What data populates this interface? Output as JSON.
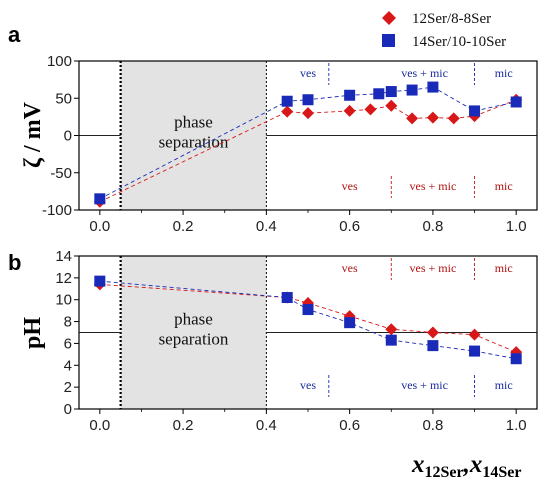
{
  "legend": [
    {
      "name": "12Ser/8-8Ser",
      "color": "#d81818",
      "marker": "diamond"
    },
    {
      "name": "14Ser/10-10Ser",
      "color": "#1a2ab8",
      "marker": "square"
    }
  ],
  "x_axis_label": {
    "main": "x",
    "sub1": "12Ser",
    "sep": ",",
    "main2": "x",
    "sub2": "14Ser"
  },
  "chart_data": [
    {
      "panel": "a",
      "type": "scatter",
      "ylabel": "ζ / mV",
      "xlim": [
        -0.05,
        1.05
      ],
      "ylim": [
        -100,
        100
      ],
      "x_ticks": [
        "0.0",
        "0.2",
        "0.4",
        "0.6",
        "0.8",
        "1.0"
      ],
      "y_ticks": [
        "100",
        "50",
        "0",
        "-50",
        "-100"
      ],
      "shaded_region": {
        "x": [
          0.05,
          0.4
        ],
        "label_line1": "phase",
        "label_line2": "separation"
      },
      "reference_line_y": 0,
      "series": [
        {
          "name": "12Ser/8-8Ser",
          "x": [
            0.0,
            0.45,
            0.5,
            0.6,
            0.65,
            0.7,
            0.75,
            0.8,
            0.85,
            0.9,
            1.0
          ],
          "values": [
            -89,
            32,
            30,
            33,
            35,
            40,
            23,
            24,
            23,
            26,
            48
          ]
        },
        {
          "name": "14Ser/10-10Ser",
          "x": [
            0.0,
            0.45,
            0.5,
            0.6,
            0.67,
            0.7,
            0.75,
            0.8,
            0.9,
            1.0
          ],
          "values": [
            -85,
            46,
            48,
            54,
            56,
            59,
            61,
            65,
            33,
            45
          ]
        }
      ],
      "regions_top": {
        "color": "blue",
        "labels": [
          {
            "text": "ves",
            "x": 0.5
          },
          {
            "text": "ves + mic",
            "x": 0.78
          },
          {
            "text": "mic",
            "x": 0.97
          }
        ],
        "dividers": [
          0.55,
          0.9
        ]
      },
      "regions_bottom": {
        "color": "red",
        "labels": [
          {
            "text": "ves",
            "x": 0.6
          },
          {
            "text": "ves + mic",
            "x": 0.8
          },
          {
            "text": "mic",
            "x": 0.97
          }
        ],
        "dividers": [
          0.7,
          0.9
        ]
      }
    },
    {
      "panel": "b",
      "type": "scatter",
      "ylabel": "pH",
      "xlim": [
        -0.05,
        1.05
      ],
      "ylim": [
        0,
        14
      ],
      "x_ticks": [
        "0.0",
        "0.2",
        "0.4",
        "0.6",
        "0.8",
        "1.0"
      ],
      "y_ticks": [
        "14",
        "12",
        "10",
        "8",
        "6",
        "4",
        "2",
        "0"
      ],
      "shaded_region": {
        "x": [
          0.05,
          0.4
        ],
        "label_line1": "phase",
        "label_line2": "separation"
      },
      "reference_line_y": 7,
      "series": [
        {
          "name": "12Ser/8-8Ser",
          "x": [
            0.0,
            0.45,
            0.5,
            0.6,
            0.7,
            0.8,
            0.9,
            1.0
          ],
          "values": [
            11.4,
            10.2,
            9.7,
            8.5,
            7.3,
            7.0,
            6.8,
            5.2
          ]
        },
        {
          "name": "14Ser/10-10Ser",
          "x": [
            0.0,
            0.45,
            0.5,
            0.6,
            0.7,
            0.8,
            0.9,
            1.0
          ],
          "values": [
            11.7,
            10.2,
            9.1,
            7.9,
            6.3,
            5.8,
            5.3,
            4.6
          ]
        }
      ],
      "regions_top": {
        "color": "red",
        "labels": [
          {
            "text": "ves",
            "x": 0.6
          },
          {
            "text": "ves + mic",
            "x": 0.8
          },
          {
            "text": "mic",
            "x": 0.97
          }
        ],
        "dividers": [
          0.7,
          0.9
        ]
      },
      "regions_bottom": {
        "color": "blue",
        "labels": [
          {
            "text": "ves",
            "x": 0.5
          },
          {
            "text": "ves + mic",
            "x": 0.78
          },
          {
            "text": "mic",
            "x": 0.97
          }
        ],
        "dividers": [
          0.55,
          0.9
        ]
      }
    }
  ]
}
